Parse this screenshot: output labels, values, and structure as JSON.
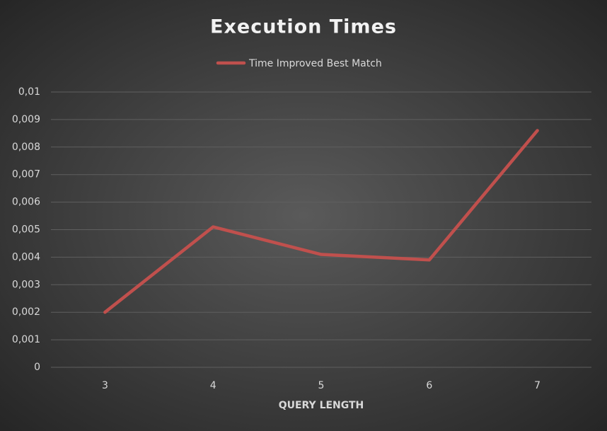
{
  "chart_data": {
    "type": "line",
    "title": "Execution Times",
    "xlabel": "QUERY LENGTH",
    "categories": [
      "3",
      "4",
      "5",
      "6",
      "7"
    ],
    "series": [
      {
        "name": "Time Improved Best Match",
        "color": "#c0504d",
        "values": [
          0.002,
          0.0051,
          0.0041,
          0.0039,
          0.0086
        ]
      }
    ],
    "ylim": [
      0,
      0.01
    ],
    "yticks": [
      0,
      {
        "value": 0.001,
        "label": "0,001"
      },
      {
        "value": 0.002,
        "label": "0,002"
      },
      {
        "value": 0.003,
        "label": "0,003"
      },
      {
        "value": 0.004,
        "label": "0,004"
      },
      {
        "value": 0.005,
        "label": "0,005"
      },
      {
        "value": 0.006,
        "label": "0,006"
      },
      {
        "value": 0.007,
        "label": "0,007"
      },
      {
        "value": 0.008,
        "label": "0,008"
      },
      {
        "value": 0.009,
        "label": "0,009"
      },
      {
        "value": 0.01,
        "label": "0,01"
      }
    ],
    "grid": true,
    "legend": "top"
  }
}
